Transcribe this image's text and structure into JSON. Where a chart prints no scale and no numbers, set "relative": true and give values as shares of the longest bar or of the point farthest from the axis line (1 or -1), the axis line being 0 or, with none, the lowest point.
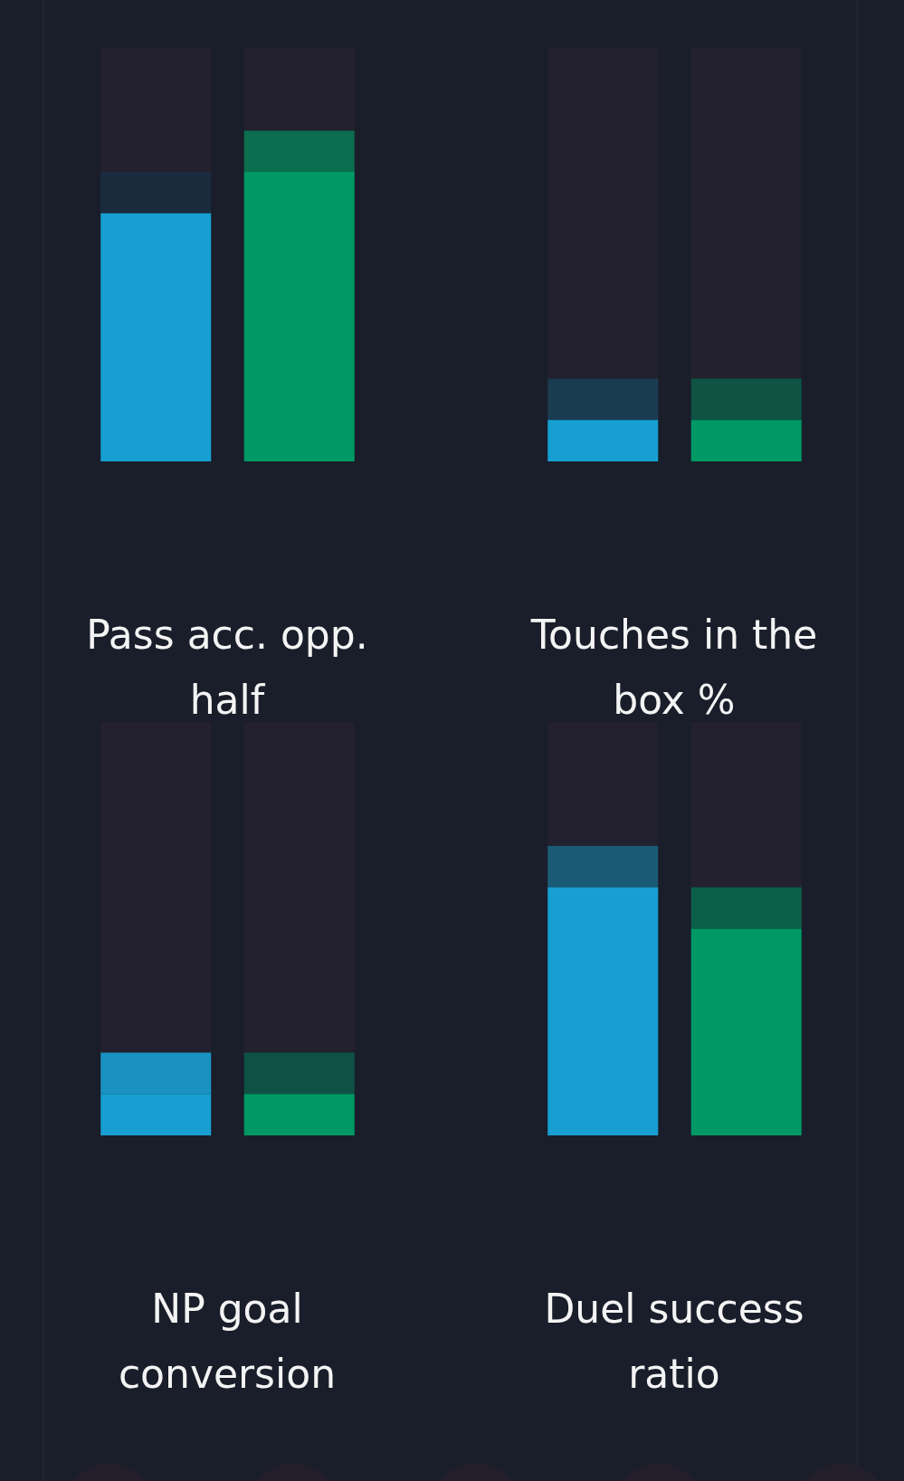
{
  "chart_data": [
    {
      "type": "bar",
      "title": "Pass acc. opp. half",
      "categories": [
        null,
        null
      ],
      "stacked": true,
      "relative": true,
      "series": [
        {
          "colors": [
            "#179fd2",
            "#009865"
          ],
          "values": [
            0.6,
            0.7
          ]
        },
        {
          "colors": [
            "#1a2b3e",
            "#0a6e4f"
          ],
          "values": [
            0.1,
            0.1
          ]
        },
        {
          "color": "#23212e",
          "values": [
            0.3,
            0.2
          ]
        }
      ]
    },
    {
      "type": "bar",
      "title": "Touches in the box %",
      "categories": [
        null,
        null
      ],
      "stacked": true,
      "relative": true,
      "series": [
        {
          "colors": [
            "#179fd2",
            "#009865"
          ],
          "values": [
            0.1,
            0.1
          ]
        },
        {
          "colors": [
            "#1a3c51",
            "#0e5344"
          ],
          "values": [
            0.1,
            0.1
          ]
        },
        {
          "color": "#23212e",
          "values": [
            0.8,
            0.8
          ]
        }
      ]
    },
    {
      "type": "bar",
      "title": "NP goal conversion",
      "categories": [
        null,
        null
      ],
      "stacked": true,
      "relative": true,
      "series": [
        {
          "colors": [
            "#179fd2",
            "#009865"
          ],
          "values": [
            0.1,
            0.1
          ]
        },
        {
          "colors": [
            "#1992c1",
            "#0e5145"
          ],
          "values": [
            0.1,
            0.1
          ]
        },
        {
          "color": "#23212e",
          "values": [
            0.8,
            0.8
          ]
        }
      ]
    },
    {
      "type": "bar",
      "title": "Duel success ratio",
      "categories": [
        null,
        null
      ],
      "stacked": true,
      "relative": true,
      "series": [
        {
          "colors": [
            "#179fd2",
            "#009865"
          ],
          "values": [
            0.6,
            0.5
          ]
        },
        {
          "colors": [
            "#1a5a74",
            "#0c604a"
          ],
          "values": [
            0.1,
            0.1
          ]
        },
        {
          "color": "#23212e",
          "values": [
            0.3,
            0.4
          ]
        }
      ]
    }
  ]
}
